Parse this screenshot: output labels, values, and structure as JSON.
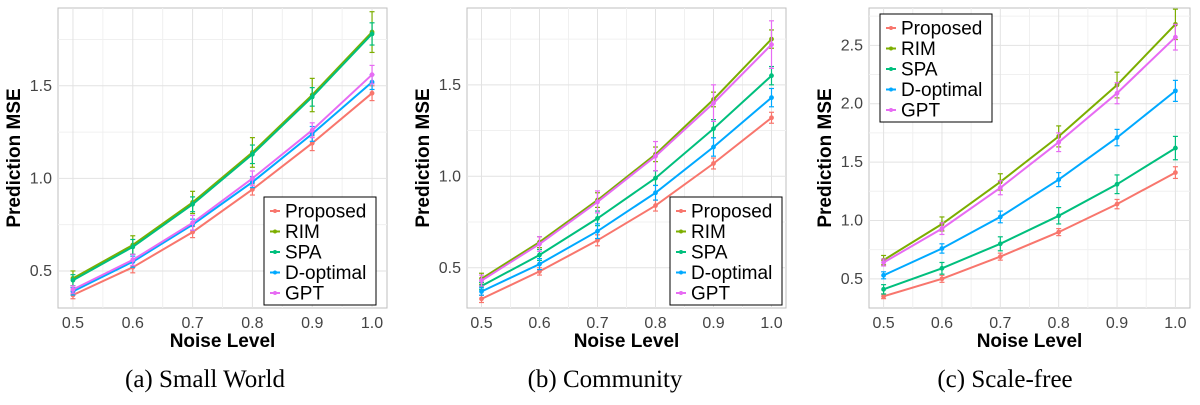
{
  "colors": {
    "Proposed": "#F8766D",
    "RIM": "#7CAE00",
    "SPA": "#00BF7D",
    "D-optimal": "#00A9FF",
    "GPT": "#E76BF3"
  },
  "chart_data": [
    {
      "type": "line",
      "caption": "(a) Small World",
      "xlabel": "Noise Level",
      "ylabel": "Prediction MSE",
      "x": [
        0.5,
        0.6,
        0.7,
        0.8,
        0.9,
        1.0
      ],
      "xticks": [
        "0.5",
        "0.6",
        "0.7",
        "0.8",
        "0.9",
        "1.0"
      ],
      "ylim": [
        0.3,
        1.92
      ],
      "yticks": [
        0.5,
        1.0,
        1.5
      ],
      "ytick_labels": [
        "0.5",
        "1.0",
        "1.5"
      ],
      "grid": true,
      "legend_position": "bottom-right",
      "series": [
        {
          "name": "Proposed",
          "values": [
            0.37,
            0.52,
            0.71,
            0.94,
            1.19,
            1.46
          ],
          "error": [
            0.02,
            0.03,
            0.03,
            0.03,
            0.04,
            0.04
          ]
        },
        {
          "name": "RIM",
          "values": [
            0.46,
            0.64,
            0.87,
            1.14,
            1.45,
            1.79
          ],
          "error": [
            0.04,
            0.05,
            0.06,
            0.08,
            0.09,
            0.11
          ]
        },
        {
          "name": "SPA",
          "values": [
            0.45,
            0.63,
            0.86,
            1.13,
            1.44,
            1.78
          ],
          "error": [
            0.03,
            0.04,
            0.04,
            0.05,
            0.05,
            0.06
          ]
        },
        {
          "name": "D-optimal",
          "values": [
            0.39,
            0.55,
            0.75,
            0.98,
            1.24,
            1.52
          ],
          "error": [
            0.02,
            0.03,
            0.03,
            0.03,
            0.04,
            0.04
          ]
        },
        {
          "name": "GPT",
          "values": [
            0.4,
            0.56,
            0.76,
            1.0,
            1.26,
            1.56
          ],
          "error": [
            0.02,
            0.03,
            0.04,
            0.04,
            0.04,
            0.05
          ]
        }
      ]
    },
    {
      "type": "line",
      "caption": "(b) Community",
      "xlabel": "Noise Level",
      "ylabel": "Prediction MSE",
      "x": [
        0.5,
        0.6,
        0.7,
        0.8,
        0.9,
        1.0
      ],
      "xticks": [
        "0.5",
        "0.6",
        "0.7",
        "0.8",
        "0.9",
        "1.0"
      ],
      "ylim": [
        0.28,
        1.92
      ],
      "yticks": [
        0.5,
        1.0,
        1.5
      ],
      "ytick_labels": [
        "0.5",
        "1.0",
        "1.5"
      ],
      "grid": true,
      "legend_position": "bottom-right",
      "series": [
        {
          "name": "Proposed",
          "values": [
            0.33,
            0.48,
            0.65,
            0.84,
            1.07,
            1.32
          ],
          "error": [
            0.02,
            0.02,
            0.03,
            0.03,
            0.03,
            0.03
          ]
        },
        {
          "name": "RIM",
          "values": [
            0.44,
            0.64,
            0.87,
            1.12,
            1.42,
            1.75
          ],
          "error": [
            0.03,
            0.03,
            0.04,
            0.04,
            0.04,
            0.05
          ]
        },
        {
          "name": "SPA",
          "values": [
            0.4,
            0.57,
            0.77,
            0.99,
            1.26,
            1.55
          ],
          "error": [
            0.02,
            0.03,
            0.04,
            0.04,
            0.05,
            0.05
          ]
        },
        {
          "name": "D-optimal",
          "values": [
            0.37,
            0.52,
            0.7,
            0.91,
            1.16,
            1.43
          ],
          "error": [
            0.02,
            0.03,
            0.04,
            0.04,
            0.05,
            0.05
          ]
        },
        {
          "name": "GPT",
          "values": [
            0.43,
            0.63,
            0.86,
            1.11,
            1.4,
            1.72
          ],
          "error": [
            0.03,
            0.04,
            0.06,
            0.08,
            0.1,
            0.13
          ]
        }
      ]
    },
    {
      "type": "line",
      "caption": "(c) Scale-free",
      "xlabel": "Noise Level",
      "ylabel": "Prediction MSE",
      "x": [
        0.5,
        0.6,
        0.7,
        0.8,
        0.9,
        1.0
      ],
      "xticks": [
        "0.5",
        "0.6",
        "0.7",
        "0.8",
        "0.9",
        "1.0"
      ],
      "ylim": [
        0.25,
        2.82
      ],
      "yticks": [
        0.5,
        1.0,
        1.5,
        2.0,
        2.5
      ],
      "ytick_labels": [
        "0.5",
        "1.0",
        "1.5",
        "2.0",
        "2.5"
      ],
      "grid": true,
      "legend_position": "top-left",
      "series": [
        {
          "name": "Proposed",
          "values": [
            0.35,
            0.5,
            0.69,
            0.9,
            1.14,
            1.41
          ],
          "error": [
            0.02,
            0.03,
            0.03,
            0.03,
            0.04,
            0.05
          ]
        },
        {
          "name": "RIM",
          "values": [
            0.66,
            0.97,
            1.33,
            1.72,
            2.16,
            2.68
          ],
          "error": [
            0.04,
            0.06,
            0.07,
            0.09,
            0.11,
            0.13
          ]
        },
        {
          "name": "SPA",
          "values": [
            0.41,
            0.59,
            0.8,
            1.04,
            1.31,
            1.62
          ],
          "error": [
            0.04,
            0.05,
            0.06,
            0.07,
            0.08,
            0.1
          ]
        },
        {
          "name": "D-optimal",
          "values": [
            0.53,
            0.76,
            1.03,
            1.35,
            1.71,
            2.11
          ],
          "error": [
            0.03,
            0.04,
            0.05,
            0.06,
            0.07,
            0.09
          ]
        },
        {
          "name": "GPT",
          "values": [
            0.64,
            0.93,
            1.28,
            1.67,
            2.09,
            2.57
          ],
          "error": [
            0.03,
            0.05,
            0.06,
            0.08,
            0.09,
            0.11
          ]
        }
      ]
    }
  ]
}
